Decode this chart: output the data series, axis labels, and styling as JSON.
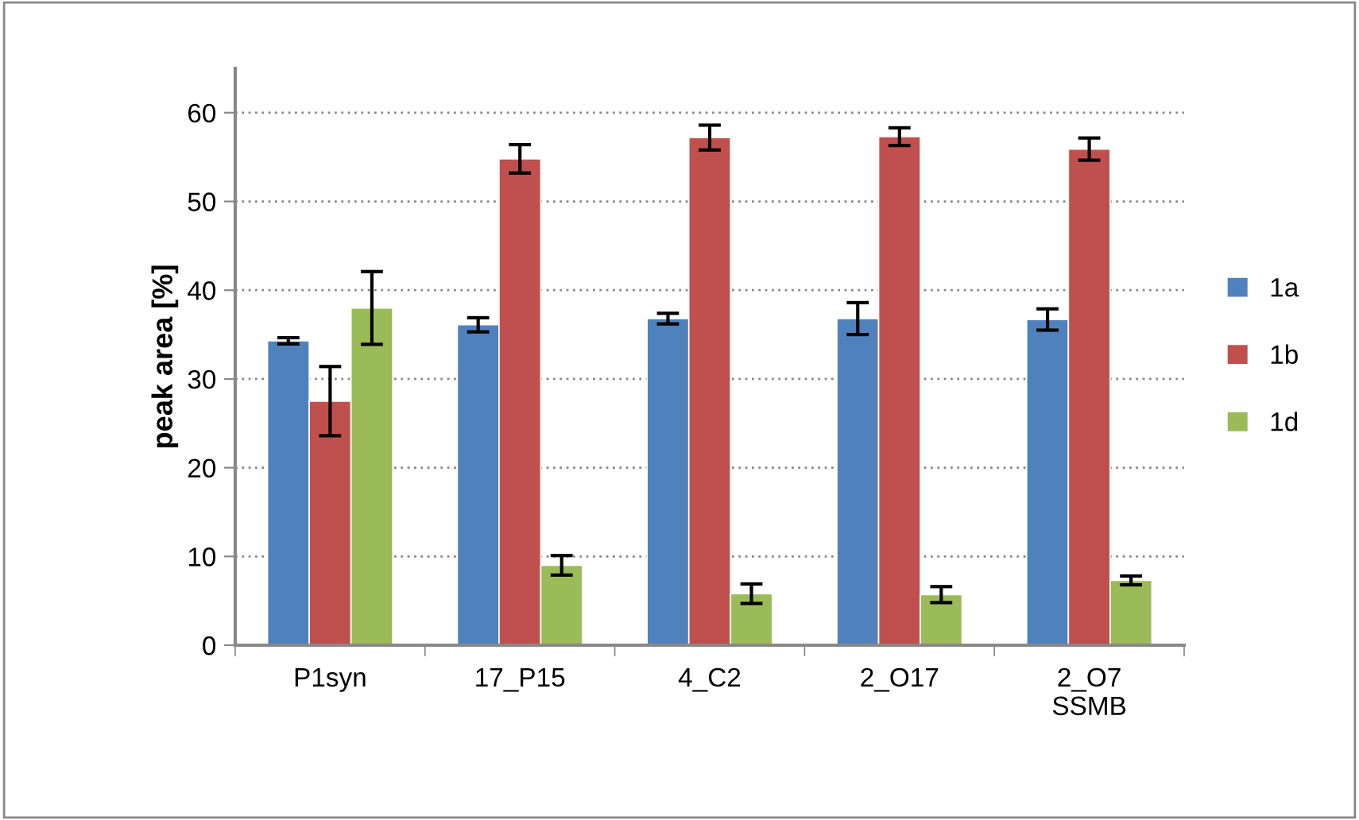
{
  "chart_data": {
    "type": "bar",
    "ylabel": "peak area [%]",
    "categories": [
      "P1syn",
      "17_P15",
      "4_C2",
      "2_O17",
      "2_O7\nSSMB"
    ],
    "series": [
      {
        "name": "1a",
        "color": "#4f81bd",
        "values": [
          34.3,
          36.1,
          36.8,
          36.8,
          36.7
        ],
        "errors": [
          0.35,
          0.8,
          0.6,
          1.8,
          1.2
        ]
      },
      {
        "name": "1b",
        "color": "#c0504d",
        "values": [
          27.5,
          54.8,
          57.2,
          57.3,
          55.9
        ],
        "errors": [
          3.9,
          1.6,
          1.4,
          1.0,
          1.25
        ]
      },
      {
        "name": "1d",
        "color": "#9bbb59",
        "values": [
          38.0,
          9.0,
          5.8,
          5.7,
          7.3
        ],
        "errors": [
          4.1,
          1.1,
          1.1,
          0.9,
          0.5
        ]
      }
    ],
    "ylim": [
      0,
      65
    ],
    "yticks": [
      0,
      10,
      20,
      30,
      40,
      50,
      60
    ],
    "grid": "y",
    "legend": "right"
  }
}
